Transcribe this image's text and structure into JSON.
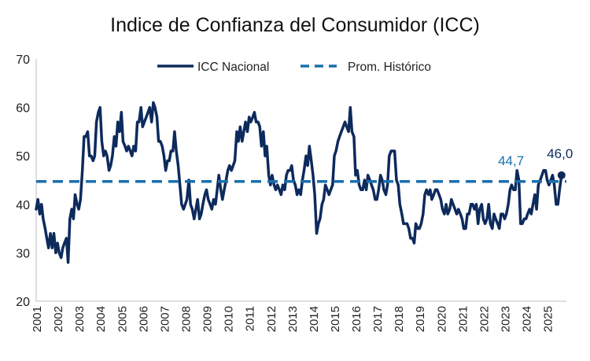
{
  "chart_data": {
    "type": "line",
    "title": "Indice de Confianza del Consumidor (ICC)",
    "xlabel": "",
    "ylabel": "",
    "ylim": [
      20,
      70
    ],
    "yticks": [
      20,
      30,
      40,
      50,
      60,
      70
    ],
    "x_tick_labels": [
      "2001",
      "2002",
      "2003",
      "2004",
      "2005",
      "2006",
      "2007",
      "2008",
      "2009",
      "2010",
      "2011",
      "2012",
      "2013",
      "2014",
      "2015",
      "2016",
      "2017",
      "2018",
      "2019",
      "2020",
      "2021",
      "2022",
      "2023",
      "2024",
      "2025"
    ],
    "x_start_year": 2001,
    "x_end_year": 2025.9,
    "legend": {
      "position": "top-center"
    },
    "series": [
      {
        "name": "ICC Nacional",
        "color": "#0d2a5c",
        "style": "solid",
        "points": [
          [
            2001.0,
            39
          ],
          [
            2001.08,
            41
          ],
          [
            2001.17,
            38
          ],
          [
            2001.25,
            40
          ],
          [
            2001.33,
            37
          ],
          [
            2001.42,
            35
          ],
          [
            2001.5,
            33
          ],
          [
            2001.58,
            31
          ],
          [
            2001.67,
            34
          ],
          [
            2001.75,
            31
          ],
          [
            2001.83,
            34
          ],
          [
            2001.92,
            30
          ],
          [
            2002.0,
            32
          ],
          [
            2002.08,
            30
          ],
          [
            2002.17,
            29
          ],
          [
            2002.25,
            31
          ],
          [
            2002.33,
            32
          ],
          [
            2002.42,
            33
          ],
          [
            2002.5,
            28
          ],
          [
            2002.58,
            37
          ],
          [
            2002.67,
            39
          ],
          [
            2002.75,
            37
          ],
          [
            2002.83,
            42
          ],
          [
            2002.92,
            40
          ],
          [
            2003.0,
            39
          ],
          [
            2003.08,
            41
          ],
          [
            2003.17,
            47
          ],
          [
            2003.25,
            54
          ],
          [
            2003.33,
            54
          ],
          [
            2003.42,
            55
          ],
          [
            2003.5,
            50
          ],
          [
            2003.58,
            50
          ],
          [
            2003.67,
            49
          ],
          [
            2003.75,
            50
          ],
          [
            2003.83,
            57
          ],
          [
            2003.92,
            59
          ],
          [
            2004.0,
            60
          ],
          [
            2004.08,
            53
          ],
          [
            2004.17,
            50
          ],
          [
            2004.25,
            51
          ],
          [
            2004.33,
            50
          ],
          [
            2004.42,
            47
          ],
          [
            2004.5,
            48
          ],
          [
            2004.58,
            50
          ],
          [
            2004.67,
            54
          ],
          [
            2004.75,
            52
          ],
          [
            2004.83,
            57
          ],
          [
            2004.92,
            55
          ],
          [
            2005.0,
            59
          ],
          [
            2005.08,
            53
          ],
          [
            2005.17,
            52
          ],
          [
            2005.25,
            51
          ],
          [
            2005.33,
            52
          ],
          [
            2005.42,
            51
          ],
          [
            2005.5,
            50
          ],
          [
            2005.58,
            52
          ],
          [
            2005.67,
            51
          ],
          [
            2005.75,
            57
          ],
          [
            2005.83,
            57
          ],
          [
            2005.92,
            60
          ],
          [
            2006.0,
            56
          ],
          [
            2006.08,
            57
          ],
          [
            2006.17,
            58
          ],
          [
            2006.25,
            59
          ],
          [
            2006.33,
            60
          ],
          [
            2006.42,
            57
          ],
          [
            2006.5,
            61
          ],
          [
            2006.58,
            60
          ],
          [
            2006.67,
            58
          ],
          [
            2006.75,
            53
          ],
          [
            2006.83,
            53
          ],
          [
            2006.92,
            52
          ],
          [
            2007.0,
            50
          ],
          [
            2007.08,
            47
          ],
          [
            2007.17,
            49
          ],
          [
            2007.25,
            49
          ],
          [
            2007.33,
            51
          ],
          [
            2007.42,
            51
          ],
          [
            2007.5,
            55
          ],
          [
            2007.58,
            51
          ],
          [
            2007.67,
            48
          ],
          [
            2007.75,
            44
          ],
          [
            2007.83,
            40
          ],
          [
            2007.92,
            39
          ],
          [
            2008.0,
            40
          ],
          [
            2008.08,
            41
          ],
          [
            2008.17,
            45
          ],
          [
            2008.25,
            40
          ],
          [
            2008.33,
            39
          ],
          [
            2008.42,
            37
          ],
          [
            2008.5,
            39
          ],
          [
            2008.58,
            41
          ],
          [
            2008.67,
            37
          ],
          [
            2008.75,
            38
          ],
          [
            2008.83,
            40
          ],
          [
            2008.92,
            42
          ],
          [
            2009.0,
            43
          ],
          [
            2009.08,
            41
          ],
          [
            2009.17,
            40
          ],
          [
            2009.25,
            39
          ],
          [
            2009.33,
            41
          ],
          [
            2009.42,
            40
          ],
          [
            2009.5,
            43
          ],
          [
            2009.58,
            46
          ],
          [
            2009.67,
            43
          ],
          [
            2009.75,
            41
          ],
          [
            2009.83,
            43
          ],
          [
            2009.92,
            45
          ],
          [
            2010.0,
            47
          ],
          [
            2010.08,
            48
          ],
          [
            2010.17,
            47
          ],
          [
            2010.25,
            48
          ],
          [
            2010.33,
            49
          ],
          [
            2010.42,
            55
          ],
          [
            2010.5,
            53
          ],
          [
            2010.58,
            56
          ],
          [
            2010.67,
            53
          ],
          [
            2010.75,
            55
          ],
          [
            2010.83,
            57
          ],
          [
            2010.92,
            55
          ],
          [
            2011.0,
            58
          ],
          [
            2011.08,
            57
          ],
          [
            2011.17,
            58
          ],
          [
            2011.25,
            59
          ],
          [
            2011.33,
            57
          ],
          [
            2011.42,
            57
          ],
          [
            2011.5,
            56
          ],
          [
            2011.58,
            52
          ],
          [
            2011.67,
            55
          ],
          [
            2011.75,
            50
          ],
          [
            2011.83,
            52
          ],
          [
            2011.92,
            46
          ],
          [
            2012.0,
            44
          ],
          [
            2012.08,
            46
          ],
          [
            2012.17,
            44
          ],
          [
            2012.25,
            43
          ],
          [
            2012.33,
            44
          ],
          [
            2012.42,
            43
          ],
          [
            2012.5,
            42
          ],
          [
            2012.58,
            44
          ],
          [
            2012.67,
            43
          ],
          [
            2012.75,
            46
          ],
          [
            2012.83,
            47
          ],
          [
            2012.92,
            47
          ],
          [
            2013.0,
            48
          ],
          [
            2013.08,
            45
          ],
          [
            2013.17,
            44
          ],
          [
            2013.25,
            42
          ],
          [
            2013.33,
            43
          ],
          [
            2013.42,
            42
          ],
          [
            2013.5,
            45
          ],
          [
            2013.58,
            47
          ],
          [
            2013.67,
            50
          ],
          [
            2013.75,
            48
          ],
          [
            2013.83,
            52
          ],
          [
            2013.92,
            49
          ],
          [
            2014.0,
            46
          ],
          [
            2014.08,
            42
          ],
          [
            2014.17,
            34
          ],
          [
            2014.25,
            36
          ],
          [
            2014.33,
            37
          ],
          [
            2014.42,
            40
          ],
          [
            2014.5,
            41
          ],
          [
            2014.58,
            44
          ],
          [
            2014.67,
            43
          ],
          [
            2014.75,
            42
          ],
          [
            2014.83,
            43
          ],
          [
            2014.92,
            44
          ],
          [
            2015.0,
            50
          ],
          [
            2015.08,
            51
          ],
          [
            2015.17,
            53
          ],
          [
            2015.25,
            54
          ],
          [
            2015.33,
            55
          ],
          [
            2015.42,
            56
          ],
          [
            2015.5,
            57
          ],
          [
            2015.58,
            56
          ],
          [
            2015.67,
            55
          ],
          [
            2015.75,
            60
          ],
          [
            2015.83,
            55
          ],
          [
            2015.92,
            54
          ],
          [
            2016.0,
            46
          ],
          [
            2016.08,
            47
          ],
          [
            2016.17,
            44
          ],
          [
            2016.25,
            43
          ],
          [
            2016.33,
            43
          ],
          [
            2016.42,
            45
          ],
          [
            2016.5,
            43
          ],
          [
            2016.58,
            46
          ],
          [
            2016.67,
            45
          ],
          [
            2016.75,
            44
          ],
          [
            2016.83,
            43
          ],
          [
            2016.92,
            41
          ],
          [
            2017.0,
            41
          ],
          [
            2017.08,
            43
          ],
          [
            2017.17,
            46
          ],
          [
            2017.25,
            45
          ],
          [
            2017.33,
            43
          ],
          [
            2017.42,
            42
          ],
          [
            2017.5,
            44
          ],
          [
            2017.58,
            50
          ],
          [
            2017.67,
            51
          ],
          [
            2017.75,
            51
          ],
          [
            2017.83,
            51
          ],
          [
            2017.92,
            45
          ],
          [
            2018.0,
            44
          ],
          [
            2018.08,
            40
          ],
          [
            2018.17,
            38
          ],
          [
            2018.25,
            36
          ],
          [
            2018.33,
            36
          ],
          [
            2018.42,
            36
          ],
          [
            2018.5,
            35
          ],
          [
            2018.58,
            33
          ],
          [
            2018.67,
            33
          ],
          [
            2018.75,
            32
          ],
          [
            2018.83,
            36
          ],
          [
            2018.92,
            35
          ],
          [
            2019.0,
            35
          ],
          [
            2019.08,
            36
          ],
          [
            2019.17,
            38
          ],
          [
            2019.25,
            42
          ],
          [
            2019.33,
            43
          ],
          [
            2019.42,
            42
          ],
          [
            2019.5,
            43
          ],
          [
            2019.58,
            41
          ],
          [
            2019.67,
            42
          ],
          [
            2019.75,
            43
          ],
          [
            2019.83,
            43
          ],
          [
            2019.92,
            42
          ],
          [
            2020.0,
            41
          ],
          [
            2020.08,
            39
          ],
          [
            2020.17,
            38
          ],
          [
            2020.25,
            40
          ],
          [
            2020.33,
            38
          ],
          [
            2020.42,
            39
          ],
          [
            2020.5,
            41
          ],
          [
            2020.58,
            40
          ],
          [
            2020.67,
            39
          ],
          [
            2020.75,
            38
          ],
          [
            2020.83,
            39
          ],
          [
            2020.92,
            38
          ],
          [
            2021.0,
            37
          ],
          [
            2021.08,
            35
          ],
          [
            2021.17,
            35
          ],
          [
            2021.25,
            38
          ],
          [
            2021.33,
            38
          ],
          [
            2021.42,
            40
          ],
          [
            2021.5,
            40
          ],
          [
            2021.58,
            39
          ],
          [
            2021.67,
            40
          ],
          [
            2021.75,
            36
          ],
          [
            2021.83,
            39
          ],
          [
            2021.92,
            40
          ],
          [
            2022.0,
            37
          ],
          [
            2022.08,
            36
          ],
          [
            2022.17,
            37
          ],
          [
            2022.25,
            40
          ],
          [
            2022.33,
            36
          ],
          [
            2022.42,
            35
          ],
          [
            2022.5,
            38
          ],
          [
            2022.58,
            37
          ],
          [
            2022.67,
            36
          ],
          [
            2022.75,
            35
          ],
          [
            2022.83,
            38
          ],
          [
            2022.92,
            38
          ],
          [
            2023.0,
            37
          ],
          [
            2023.08,
            38
          ],
          [
            2023.17,
            40
          ],
          [
            2023.25,
            43
          ],
          [
            2023.33,
            44
          ],
          [
            2023.42,
            43
          ],
          [
            2023.5,
            43
          ],
          [
            2023.58,
            47
          ],
          [
            2023.67,
            45
          ],
          [
            2023.75,
            36
          ],
          [
            2023.83,
            36
          ],
          [
            2023.92,
            37
          ],
          [
            2024.0,
            37
          ],
          [
            2024.08,
            38
          ],
          [
            2024.17,
            39
          ],
          [
            2024.25,
            38
          ],
          [
            2024.33,
            40
          ],
          [
            2024.42,
            42
          ],
          [
            2024.5,
            39
          ],
          [
            2024.58,
            44
          ],
          [
            2024.67,
            45
          ],
          [
            2024.75,
            46
          ],
          [
            2024.83,
            47
          ],
          [
            2024.92,
            47
          ],
          [
            2025.0,
            45
          ],
          [
            2025.08,
            44
          ],
          [
            2025.17,
            45
          ],
          [
            2025.25,
            46
          ],
          [
            2025.33,
            44
          ],
          [
            2025.42,
            40
          ],
          [
            2025.5,
            40
          ],
          [
            2025.58,
            43
          ],
          [
            2025.67,
            46
          ]
        ]
      },
      {
        "name": "Prom. Histórico",
        "color": "#1a6fae",
        "style": "dashed",
        "points": [
          [
            2001.0,
            44.7
          ],
          [
            2025.9,
            44.7
          ]
        ]
      }
    ],
    "annotations": [
      {
        "text": "44,7",
        "x": 2023.3,
        "y": 44.7,
        "color": "#1a6fae"
      },
      {
        "text": "46,0",
        "x": 2025.67,
        "y": 46.0,
        "color": "#0d2a5c"
      }
    ]
  }
}
